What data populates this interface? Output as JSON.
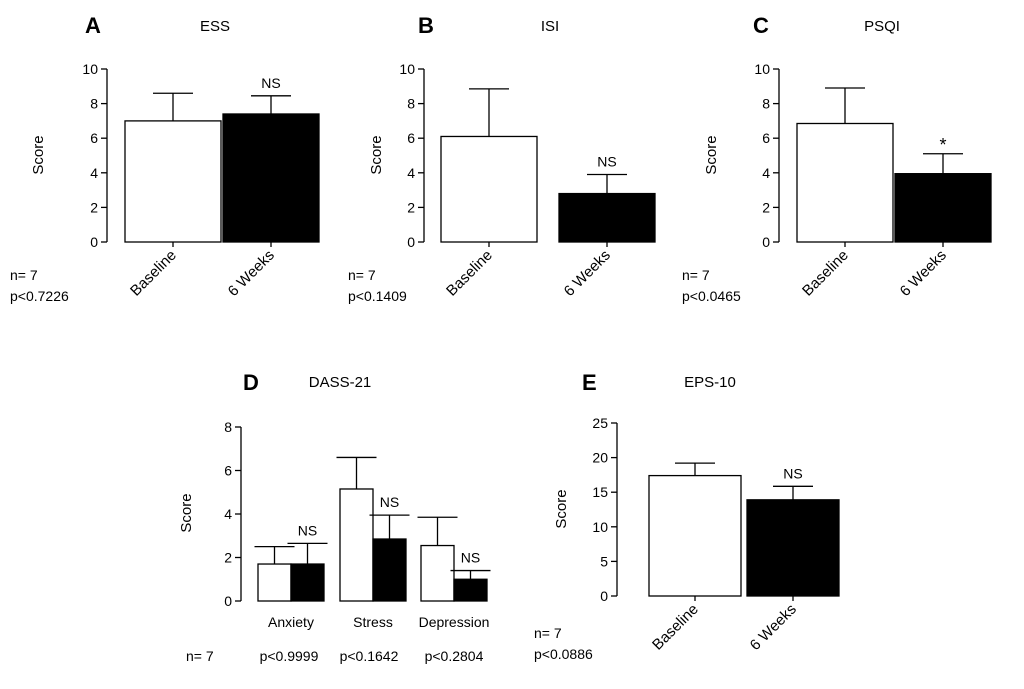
{
  "chart_data": [
    {
      "id": "A",
      "panel": "A",
      "title": "ESS",
      "type": "bar",
      "ylabel": "Score",
      "ylim": [
        0,
        10
      ],
      "yticks": [
        0,
        2,
        4,
        6,
        8,
        10
      ],
      "categories": [
        "Baseline",
        "6 Weeks"
      ],
      "values": [
        7.0,
        7.4
      ],
      "errors": [
        1.6,
        1.05
      ],
      "fills": [
        "#ffffff",
        "#000000"
      ],
      "sig": [
        "",
        "NS"
      ],
      "n": "n= 7",
      "p": "p<0.7226"
    },
    {
      "id": "B",
      "panel": "B",
      "title": "ISI",
      "type": "bar",
      "ylabel": "Score",
      "ylim": [
        0,
        10
      ],
      "yticks": [
        0,
        2,
        4,
        6,
        8,
        10
      ],
      "categories": [
        "Baseline",
        "6 Weeks"
      ],
      "values": [
        6.1,
        2.8
      ],
      "errors": [
        2.75,
        1.1
      ],
      "fills": [
        "#ffffff",
        "#000000"
      ],
      "sig": [
        "",
        "NS"
      ],
      "n": "n= 7",
      "p": "p<0.1409"
    },
    {
      "id": "C",
      "panel": "C",
      "title": "PSQI",
      "type": "bar",
      "ylabel": "Score",
      "ylim": [
        0,
        10
      ],
      "yticks": [
        0,
        2,
        4,
        6,
        8,
        10
      ],
      "categories": [
        "Baseline",
        "6 Weeks"
      ],
      "values": [
        6.85,
        3.95
      ],
      "errors": [
        2.05,
        1.15
      ],
      "fills": [
        "#ffffff",
        "#000000"
      ],
      "sig": [
        "",
        "*"
      ],
      "n": "n= 7",
      "p": "p<0.0465"
    },
    {
      "id": "D",
      "panel": "D",
      "title": "DASS-21",
      "type": "bar",
      "ylabel": "Score",
      "ylim": [
        0,
        8
      ],
      "yticks": [
        0,
        2,
        4,
        6,
        8
      ],
      "categories": [
        "Anxiety",
        "Stress",
        "Depression"
      ],
      "series": [
        {
          "fill": "#ffffff",
          "values": [
            1.7,
            5.15,
            2.55
          ],
          "errors": [
            0.8,
            1.45,
            1.3
          ]
        },
        {
          "fill": "#000000",
          "values": [
            1.7,
            2.85,
            1.0
          ],
          "errors": [
            0.95,
            1.1,
            0.4
          ]
        }
      ],
      "sig": [
        "NS",
        "NS",
        "NS"
      ],
      "n": "n= 7",
      "p_values": [
        "p<0.9999",
        "p<0.1642",
        "p<0.2804"
      ]
    },
    {
      "id": "E",
      "panel": "E",
      "title": "EPS-10",
      "type": "bar",
      "ylabel": "Score",
      "ylim": [
        0,
        25
      ],
      "yticks": [
        0,
        5,
        10,
        15,
        20,
        25
      ],
      "categories": [
        "Baseline",
        "6 Weeks"
      ],
      "values": [
        17.4,
        13.9
      ],
      "errors": [
        1.8,
        1.95
      ],
      "fills": [
        "#ffffff",
        "#000000"
      ],
      "sig": [
        "",
        "NS"
      ],
      "n": "n= 7",
      "p": "p<0.0886"
    }
  ]
}
